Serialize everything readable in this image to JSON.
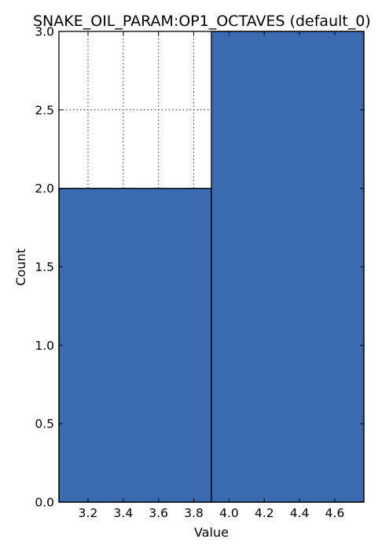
{
  "chart_data": {
    "type": "bar",
    "title": "SNAKE_OIL_PARAM:OP1_OCTAVES (default_0)",
    "xlabel": "Value",
    "ylabel": "Count",
    "xlim": [
      3.035,
      4.765
    ],
    "ylim": [
      0,
      3.0
    ],
    "grid": true,
    "bins": [
      {
        "x0": 3.035,
        "x1": 3.9,
        "count": 2
      },
      {
        "x0": 3.9,
        "x1": 4.765,
        "count": 3
      }
    ],
    "xticks": [
      {
        "value": 3.2,
        "label": "3.2"
      },
      {
        "value": 3.4,
        "label": "3.4"
      },
      {
        "value": 3.6,
        "label": "3.6"
      },
      {
        "value": 3.8,
        "label": "3.8"
      },
      {
        "value": 4.0,
        "label": "4.0"
      },
      {
        "value": 4.2,
        "label": "4.2"
      },
      {
        "value": 4.4,
        "label": "4.4"
      },
      {
        "value": 4.6,
        "label": "4.6"
      }
    ],
    "yticks": [
      {
        "value": 0.0,
        "label": "0.0"
      },
      {
        "value": 0.5,
        "label": "0.5"
      },
      {
        "value": 1.0,
        "label": "1.0"
      },
      {
        "value": 1.5,
        "label": "1.5"
      },
      {
        "value": 2.0,
        "label": "2.0"
      },
      {
        "value": 2.5,
        "label": "2.5"
      },
      {
        "value": 3.0,
        "label": "3.0"
      }
    ],
    "colors": {
      "bar": "#3a6bb0",
      "edge": "#000000"
    }
  }
}
